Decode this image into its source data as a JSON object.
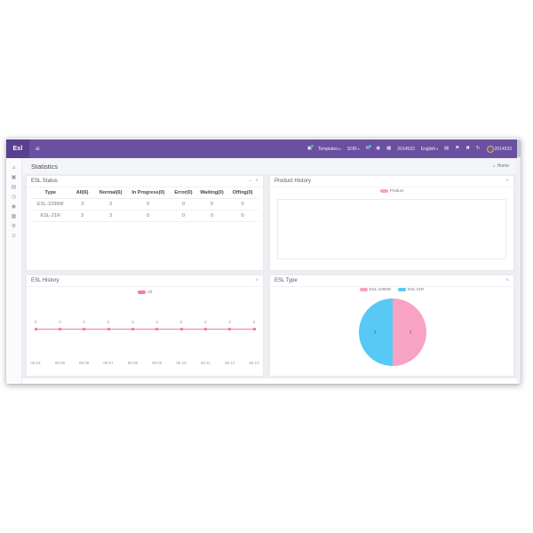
{
  "colors": {
    "topbar_bg": "#6b4fa0",
    "brand_bg": "#5a4090",
    "badge_green": "#2ecc8f",
    "badge_cyan": "#29cdea",
    "pink": "#f8a3c3",
    "cyan": "#58c8f4",
    "line_pink": "#ef7fa2"
  },
  "topbar": {
    "brand": "Esl",
    "menu_icon": "≡",
    "right": {
      "cart_icon": "▣",
      "templates_label": "Templates",
      "store_label": "SOR",
      "caret": "▾",
      "mail_icon": "✉",
      "help_icon": "◉",
      "chart_icon": "▦",
      "store_code": "2014533",
      "language_label": "English",
      "print_icon": "▤",
      "flag_icon": "⚑",
      "fullscreen_icon": "✖",
      "refresh_icon": "↻",
      "username": "2014533"
    }
  },
  "sidebar": {
    "items": [
      {
        "name": "home",
        "glyph": "⌂",
        "active": true
      },
      {
        "name": "products",
        "glyph": "▣",
        "active": false
      },
      {
        "name": "esl",
        "glyph": "▤",
        "active": false
      },
      {
        "name": "history",
        "glyph": "◷",
        "active": false
      },
      {
        "name": "network",
        "glyph": "◉",
        "active": false
      },
      {
        "name": "reports",
        "glyph": "▦",
        "active": false
      },
      {
        "name": "settings",
        "glyph": "⚙",
        "active": false
      },
      {
        "name": "system",
        "glyph": "⊙",
        "active": false
      }
    ]
  },
  "page": {
    "title": "Statistics",
    "breadcrumb": {
      "icon": "⌂",
      "label": "Home"
    }
  },
  "panels": {
    "esl_status": {
      "title": "ESL Status",
      "minimize_icon": "–",
      "close_icon": "×",
      "table": {
        "headers": [
          "Type",
          "All(6)",
          "Normal(6)",
          "In Progress(0)",
          "Error(0)",
          "Waiting(0)",
          "Offing(0)"
        ],
        "rows": [
          [
            "ESL-2298W",
            "3",
            "3",
            "0",
            "0",
            "0",
            "0"
          ],
          [
            "ESL-21R",
            "3",
            "3",
            "0",
            "0",
            "0",
            "0"
          ]
        ]
      }
    },
    "product_history": {
      "title": "Product History",
      "close_icon": "×"
    },
    "esl_history": {
      "title": "ESL History",
      "close_icon": "×"
    },
    "esl_type": {
      "title": "ESL Type",
      "close_icon": "×"
    }
  },
  "chart_data": [
    {
      "id": "product_history",
      "type": "line",
      "title": "Product History",
      "x": [],
      "series": [
        {
          "name": "Product",
          "color": "#f8a3c3",
          "values": []
        }
      ],
      "legend_position": "top",
      "grid": false,
      "note_empty_plot": true
    },
    {
      "id": "esl_history",
      "type": "line",
      "title": "ESL History",
      "x": [
        "05:04",
        "05:05",
        "05:06",
        "05:07",
        "05:08",
        "05:09",
        "05:10",
        "05:11",
        "05:12",
        "05:13"
      ],
      "series": [
        {
          "name": "All",
          "color": "#ef7fa2",
          "values": [
            0,
            0,
            0,
            0,
            0,
            0,
            0,
            0,
            0,
            0
          ]
        }
      ],
      "ylim": [
        0,
        1
      ],
      "legend_position": "top",
      "grid": false
    },
    {
      "id": "esl_type",
      "type": "pie",
      "title": "ESL Type",
      "slices": [
        {
          "label": "ESL-2298W",
          "value": 3,
          "color": "#f8a3c3"
        },
        {
          "label": "ESL-21R",
          "value": 3,
          "color": "#58c8f4"
        }
      ],
      "legend_position": "top"
    }
  ]
}
